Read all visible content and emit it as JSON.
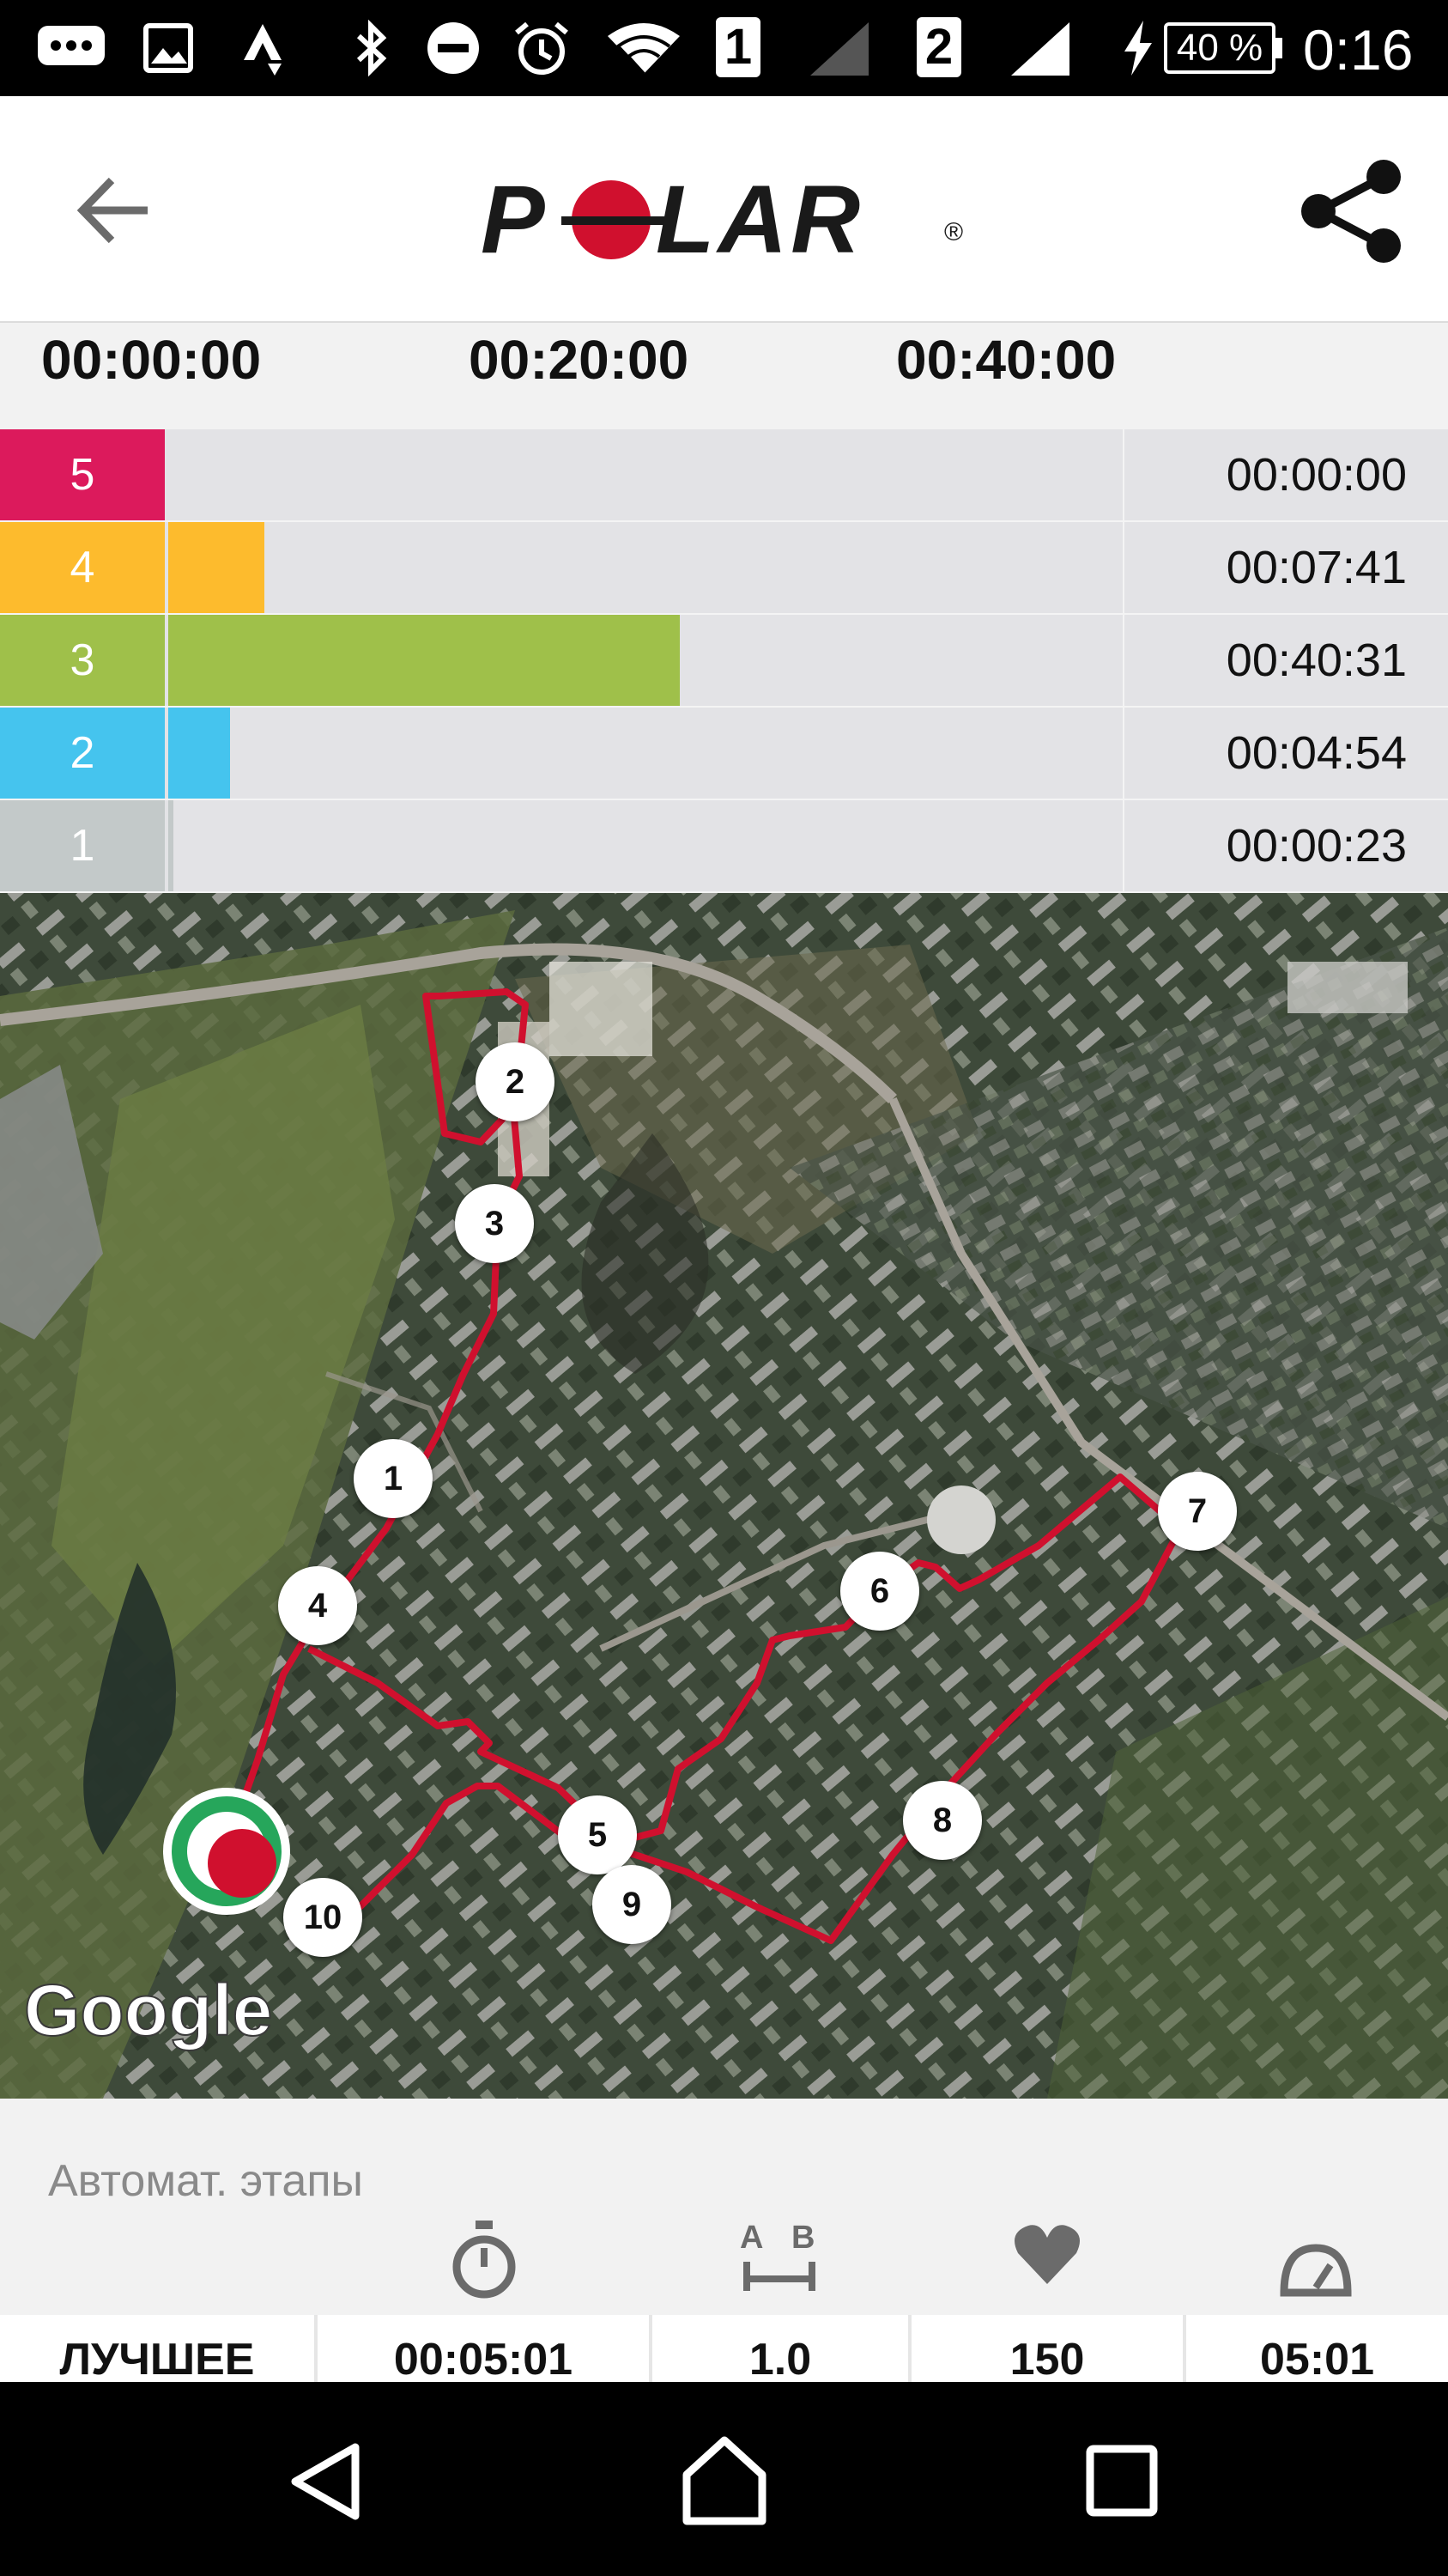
{
  "status_bar": {
    "sim1": "1",
    "sim2": "2",
    "battery": "40 %",
    "time": "0:16",
    "icons": [
      "messages-icon",
      "gallery-icon",
      "strava-icon",
      "bluetooth-icon",
      "do-not-disturb-icon",
      "alarm-icon",
      "wifi-icon",
      "sim1-signal-icon",
      "sim2-signal-icon",
      "charging-icon",
      "battery-icon"
    ]
  },
  "app_bar": {
    "logo_text": "POLAR",
    "logo_registered": "®",
    "back_icon": "arrow-back-icon",
    "share_icon": "share-icon"
  },
  "timeline": {
    "ticks": [
      "00:00:00",
      "00:20:00",
      "00:40:00"
    ]
  },
  "zones": [
    {
      "zone": "5",
      "time": "00:00:00",
      "fraction": 0.0,
      "color": "#dc1a5c"
    },
    {
      "zone": "4",
      "time": "00:07:41",
      "fraction": 0.075,
      "color": "#fdbb2d"
    },
    {
      "zone": "3",
      "time": "00:40:31",
      "fraction": 0.4,
      "color": "#9fc04a"
    },
    {
      "zone": "2",
      "time": "00:04:54",
      "fraction": 0.048,
      "color": "#45c4ee"
    },
    {
      "zone": "1",
      "time": "00:00:23",
      "fraction": 0.004,
      "color": "#c3c9c9"
    }
  ],
  "map": {
    "provider": "Google",
    "route_color": "#d0102e",
    "lap_markers": [
      "1",
      "2",
      "3",
      "4",
      "5",
      "6",
      "7",
      "8",
      "9",
      "10"
    ]
  },
  "laps": {
    "title": "Автомат. этапы",
    "column_icons": [
      "stopwatch-icon",
      "distance-ab-icon",
      "heart-icon",
      "pace-gauge-icon"
    ],
    "best_row": [
      "ЛУЧШЕЕ",
      "00:05:01",
      "1.0",
      "150",
      "05:01"
    ]
  },
  "nav_bar": {
    "icons": [
      "nav-back-icon",
      "nav-home-icon",
      "nav-recents-icon"
    ]
  }
}
